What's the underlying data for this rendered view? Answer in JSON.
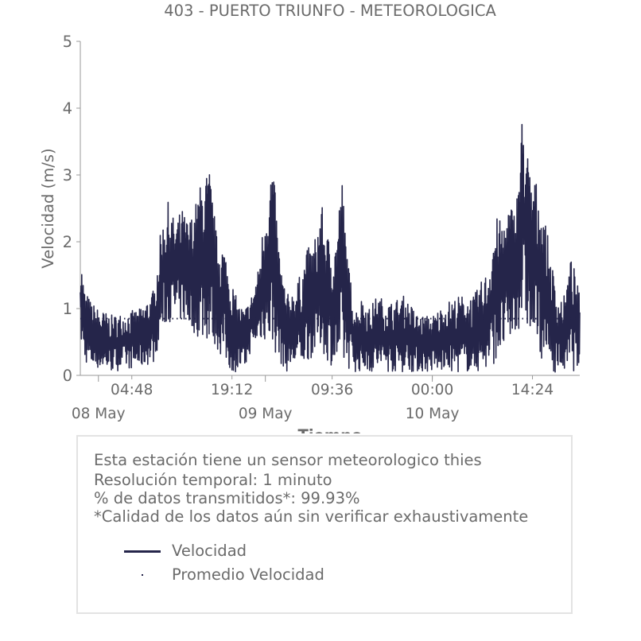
{
  "chart_data": {
    "type": "line",
    "title": "403 - PUERTO TRIUNFO - METEOROLOGICA",
    "xlabel": "Tiempo",
    "ylabel": "Velocidad (m/s)",
    "ylim": [
      0,
      5
    ],
    "yticks": [
      "0",
      "1",
      "2",
      "3",
      "4",
      "5"
    ],
    "xticks": [
      {
        "t": 4.8,
        "label": "04:48"
      },
      {
        "t": 19.2,
        "label": "19:12"
      },
      {
        "t": 33.6,
        "label": "09:36"
      },
      {
        "t": 48.0,
        "label": "00:00"
      },
      {
        "t": 62.4,
        "label": "14:24"
      }
    ],
    "date_labels": [
      {
        "t": 0,
        "label": "08 May"
      },
      {
        "t": 24,
        "label": "09 May"
      },
      {
        "t": 48,
        "label": "10 May"
      }
    ],
    "xlim_hours_from_08May": [
      -2.6,
      69.2
    ],
    "grid": false,
    "legend_placement": "bottom",
    "series": [
      {
        "name": "Velocidad",
        "color": "#25254a",
        "envelope_x_hours": [
          -2.6,
          -2.0,
          -1.0,
          0,
          2,
          4,
          6,
          8,
          9,
          10,
          11,
          12,
          13,
          14,
          15,
          16,
          17,
          18,
          19,
          20,
          21,
          22,
          23,
          24,
          25,
          26,
          27,
          28,
          29,
          30,
          31,
          32,
          33,
          34,
          35,
          36,
          37,
          38,
          39,
          40,
          42,
          44,
          46,
          48,
          50,
          52,
          54,
          56,
          57,
          58,
          59,
          60,
          61,
          62,
          63,
          64,
          65,
          66,
          67,
          68,
          69.2
        ],
        "envelope_max": [
          1.85,
          1.3,
          1.1,
          1.0,
          0.9,
          0.95,
          1.0,
          1.3,
          2.2,
          2.6,
          2.3,
          2.5,
          2.3,
          2.6,
          3.0,
          3.1,
          2.1,
          2.0,
          1.5,
          1.1,
          1.0,
          1.2,
          1.6,
          2.6,
          3.3,
          1.9,
          1.2,
          1.3,
          1.5,
          1.9,
          2.0,
          2.6,
          2.1,
          2.0,
          3.0,
          1.6,
          1.0,
          1.2,
          1.0,
          1.2,
          1.1,
          1.2,
          0.9,
          0.9,
          1.1,
          1.2,
          1.2,
          1.6,
          2.4,
          2.3,
          2.6,
          2.5,
          4.05,
          3.1,
          2.9,
          2.5,
          1.8,
          1.2,
          1.2,
          1.8,
          1.2
        ],
        "envelope_min": [
          0.5,
          0.2,
          0.1,
          0.1,
          0.05,
          0.1,
          0.1,
          0.2,
          0.6,
          0.8,
          0.8,
          0.8,
          0.7,
          0.6,
          0.5,
          0.5,
          0.4,
          0.2,
          0.05,
          0.05,
          0.05,
          0.4,
          0.5,
          0.5,
          0.4,
          0.2,
          0.05,
          0.1,
          0.1,
          0.2,
          0.3,
          0.4,
          0.2,
          0.1,
          0.05,
          0.1,
          0.05,
          0.05,
          0.05,
          0.05,
          0.05,
          0.05,
          0.05,
          0.05,
          0.05,
          0.05,
          0.05,
          0.05,
          0.2,
          0.3,
          0.4,
          0.6,
          0.8,
          0.6,
          0.4,
          0.2,
          0.05,
          0.05,
          0.05,
          0.05,
          0.1
        ]
      },
      {
        "name": "Promedio Velocidad",
        "color": "#25254a",
        "style": "dotted",
        "value": 0.85
      }
    ]
  },
  "info": {
    "line1": "Esta estación tiene un sensor meteorologico thies",
    "line2": "Resolución temporal: 1 minuto",
    "line3": "% de datos transmitidos*: 99.93%",
    "line4": "*Calidad de los datos aún sin verificar exhaustivamente"
  },
  "legend": {
    "velocidad": "Velocidad",
    "promedio": "Promedio Velocidad"
  },
  "colors": {
    "series": "#25254a",
    "text": "#6b6b6b",
    "axis": "#9a9a9a",
    "box_border": "#e3e3e3"
  }
}
